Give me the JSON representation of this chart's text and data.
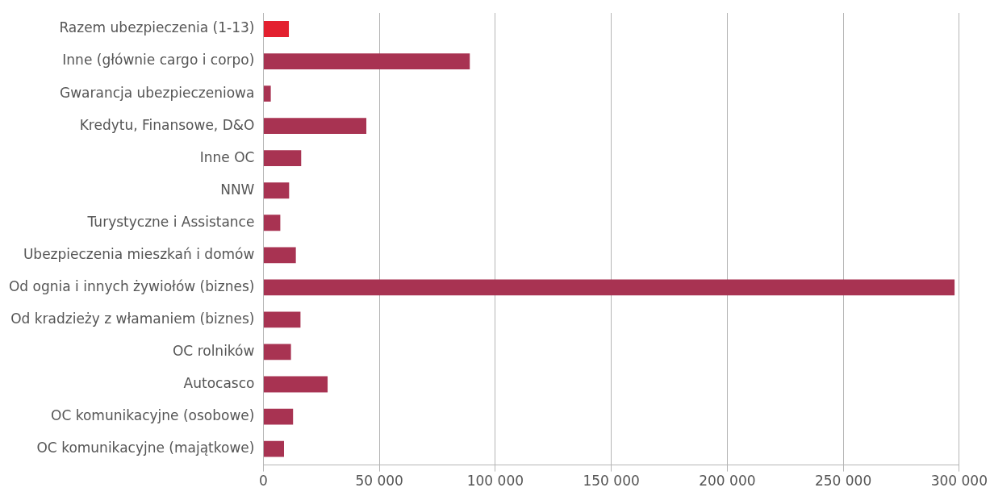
{
  "chart_data": {
    "type": "bar",
    "orientation": "horizontal",
    "categories": [
      "Razem ubezpieczenia (1-13)",
      "Inne (głównie cargo i corpo)",
      "Gwarancja ubezpieczeniowa",
      "Kredytu, Finansowe, D&O",
      "Inne OC",
      "NNW",
      "Turystyczne i Assistance",
      "Ubezpieczenia mieszkań i domów",
      "Od ognia i innych żywiołów (biznes)",
      "Od kradzieży z włamaniem (biznes)",
      "OC rolników",
      "Autocasco",
      "OC komunikacyjne (osobowe)",
      "OC komunikacyjne (majątkowe)"
    ],
    "values": [
      11000,
      89000,
      3200,
      44400,
      16300,
      11100,
      7300,
      14000,
      298000,
      16000,
      11900,
      27700,
      12800,
      8900
    ],
    "colors": [
      "#e3202f",
      "#a83352",
      "#a83352",
      "#a83352",
      "#a83352",
      "#a83352",
      "#a83352",
      "#a83352",
      "#a83352",
      "#a83352",
      "#a83352",
      "#a83352",
      "#a83352",
      "#a83352"
    ],
    "xlim": [
      0,
      300000
    ],
    "xticks": [
      {
        "value": 0,
        "label": "0"
      },
      {
        "value": 50000,
        "label": "50 000"
      },
      {
        "value": 100000,
        "label": "100 000"
      },
      {
        "value": 150000,
        "label": "150 000"
      },
      {
        "value": 200000,
        "label": "200 000"
      },
      {
        "value": 250000,
        "label": "250 000"
      },
      {
        "value": 300000,
        "label": "300 000"
      }
    ],
    "grid": "x",
    "legend": false
  }
}
